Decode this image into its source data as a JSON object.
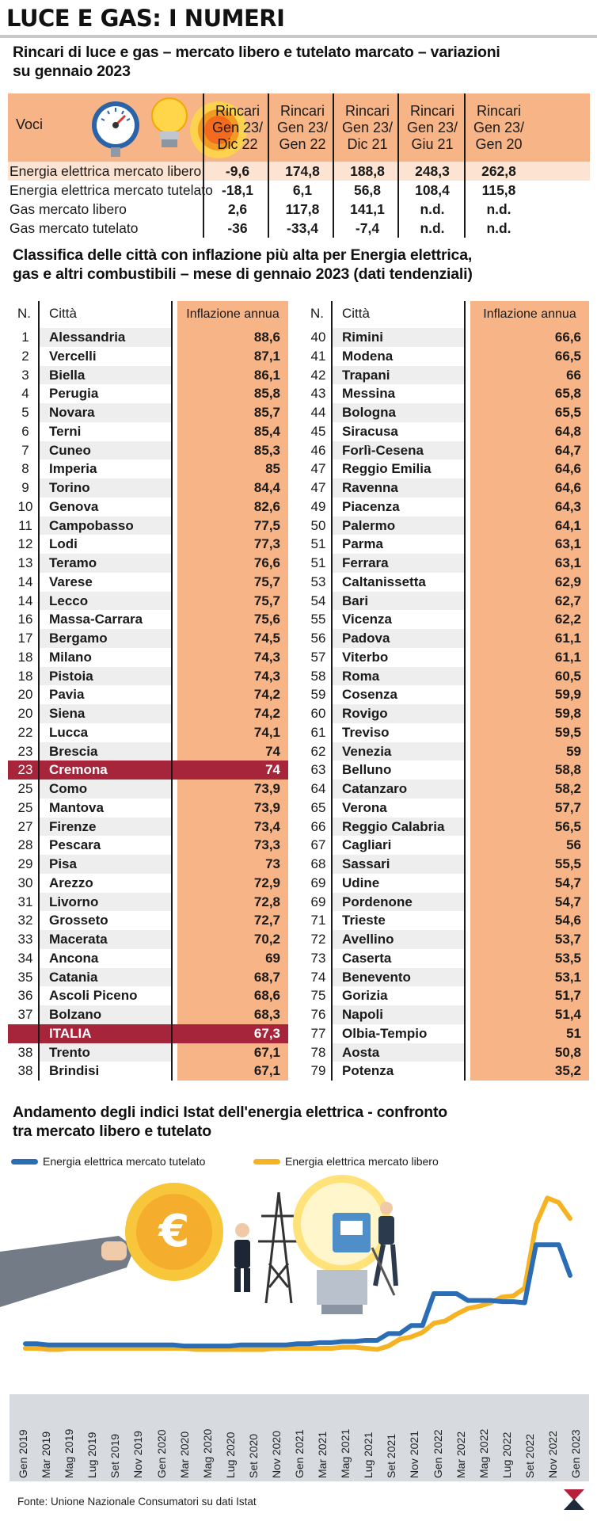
{
  "masthead": "LUCE E GAS: I NUMERI",
  "section1": {
    "title_line1": "Rincari di luce e gas – mercato libero e tutelato marcato – variazioni",
    "title_line2": "su gennaio 2023",
    "voci": "Voci",
    "columns": [
      {
        "l1": "Rincari",
        "l2": "Gen 23/",
        "l3": "Dic 22"
      },
      {
        "l1": "Rincari",
        "l2": "Gen 23/",
        "l3": "Gen 22"
      },
      {
        "l1": "Rincari",
        "l2": "Gen 23/",
        "l3": "Dic 21"
      },
      {
        "l1": "Rincari",
        "l2": "Gen 23/",
        "l3": "Giu 21"
      },
      {
        "l1": "Rincari",
        "l2": "Gen 23/",
        "l3": "Gen 20"
      }
    ],
    "rows": [
      {
        "label": "Energia elettrica mercato libero",
        "values": [
          "-9,6",
          "174,8",
          "188,8",
          "248,3",
          "262,8"
        ]
      },
      {
        "label": "Energia elettrica mercato tutelato",
        "values": [
          "-18,1",
          "6,1",
          "56,8",
          "108,4",
          "115,8"
        ]
      },
      {
        "label": "Gas mercato libero",
        "values": [
          "2,6",
          "117,8",
          "141,1",
          "n.d.",
          "n.d."
        ]
      },
      {
        "label": "Gas mercato tutelato",
        "values": [
          "-36",
          "-33,4",
          "-7,4",
          "n.d.",
          "n.d."
        ]
      }
    ]
  },
  "section2": {
    "title_line1": "Classifica delle città con inflazione più alta per Energia elettrica,",
    "title_line2": "gas e altri combustibili – mese di gennaio 2023 (dati tendenziali)",
    "head_n": "N.",
    "head_city": "Città",
    "head_infl": "Inflazione annua",
    "left": [
      [
        "1",
        "Alessandria",
        "88,6"
      ],
      [
        "2",
        "Vercelli",
        "87,1"
      ],
      [
        "3",
        "Biella",
        "86,1"
      ],
      [
        "4",
        "Perugia",
        "85,8"
      ],
      [
        "5",
        "Novara",
        "85,7"
      ],
      [
        "6",
        "Terni",
        "85,4"
      ],
      [
        "7",
        "Cuneo",
        "85,3"
      ],
      [
        "8",
        "Imperia",
        "85"
      ],
      [
        "9",
        "Torino",
        "84,4"
      ],
      [
        "10",
        "Genova",
        "82,6"
      ],
      [
        "11",
        "Campobasso",
        "77,5"
      ],
      [
        "12",
        "Lodi",
        "77,3"
      ],
      [
        "13",
        "Teramo",
        "76,6"
      ],
      [
        "14",
        "Varese",
        "75,7"
      ],
      [
        "14",
        "Lecco",
        "75,7"
      ],
      [
        "16",
        "Massa-Carrara",
        "75,6"
      ],
      [
        "17",
        "Bergamo",
        "74,5"
      ],
      [
        "18",
        "Milano",
        "74,3"
      ],
      [
        "18",
        "Pistoia",
        "74,3"
      ],
      [
        "20",
        "Pavia",
        "74,2"
      ],
      [
        "20",
        "Siena",
        "74,2"
      ],
      [
        "22",
        "Lucca",
        "74,1"
      ],
      [
        "23",
        "Brescia",
        "74"
      ],
      [
        "23",
        "Cremona",
        "74"
      ],
      [
        "25",
        "Como",
        "73,9"
      ],
      [
        "25",
        "Mantova",
        "73,9"
      ],
      [
        "27",
        "Firenze",
        "73,4"
      ],
      [
        "28",
        "Pescara",
        "73,3"
      ],
      [
        "29",
        "Pisa",
        "73"
      ],
      [
        "30",
        "Arezzo",
        "72,9"
      ],
      [
        "31",
        "Livorno",
        "72,8"
      ],
      [
        "32",
        "Grosseto",
        "72,7"
      ],
      [
        "33",
        "Macerata",
        "70,2"
      ],
      [
        "34",
        "Ancona",
        "69"
      ],
      [
        "35",
        "Catania",
        "68,7"
      ],
      [
        "36",
        "Ascoli Piceno",
        "68,6"
      ],
      [
        "37",
        "Bolzano",
        "68,3"
      ],
      [
        "",
        "ITALIA",
        "67,3"
      ],
      [
        "38",
        "Trento",
        "67,1"
      ],
      [
        "38",
        "Brindisi",
        "67,1"
      ]
    ],
    "right": [
      [
        "40",
        "Rimini",
        "66,6"
      ],
      [
        "41",
        "Modena",
        "66,5"
      ],
      [
        "42",
        "Trapani",
        "66"
      ],
      [
        "43",
        "Messina",
        "65,8"
      ],
      [
        "44",
        "Bologna",
        "65,5"
      ],
      [
        "45",
        "Siracusa",
        "64,8"
      ],
      [
        "46",
        "Forlì-Cesena",
        "64,7"
      ],
      [
        "47",
        "Reggio Emilia",
        "64,6"
      ],
      [
        "47",
        "Ravenna",
        "64,6"
      ],
      [
        "49",
        "Piacenza",
        "64,3"
      ],
      [
        "50",
        "Palermo",
        "64,1"
      ],
      [
        "51",
        "Parma",
        "63,1"
      ],
      [
        "51",
        "Ferrara",
        "63,1"
      ],
      [
        "53",
        "Caltanissetta",
        "62,9"
      ],
      [
        "54",
        "Bari",
        "62,7"
      ],
      [
        "55",
        "Vicenza",
        "62,2"
      ],
      [
        "56",
        "Padova",
        "61,1"
      ],
      [
        "57",
        "Viterbo",
        "61,1"
      ],
      [
        "58",
        "Roma",
        "60,5"
      ],
      [
        "59",
        "Cosenza",
        "59,9"
      ],
      [
        "60",
        "Rovigo",
        "59,8"
      ],
      [
        "61",
        "Treviso",
        "59,5"
      ],
      [
        "62",
        "Venezia",
        "59"
      ],
      [
        "63",
        "Belluno",
        "58,8"
      ],
      [
        "64",
        "Catanzaro",
        "58,2"
      ],
      [
        "65",
        "Verona",
        "57,7"
      ],
      [
        "66",
        "Reggio Calabria",
        "56,5"
      ],
      [
        "67",
        "Cagliari",
        "56"
      ],
      [
        "68",
        "Sassari",
        "55,5"
      ],
      [
        "69",
        "Udine",
        "54,7"
      ],
      [
        "69",
        "Pordenone",
        "54,7"
      ],
      [
        "71",
        "Trieste",
        "54,6"
      ],
      [
        "72",
        "Avellino",
        "53,7"
      ],
      [
        "73",
        "Caserta",
        "53,5"
      ],
      [
        "74",
        "Benevento",
        "53,1"
      ],
      [
        "75",
        "Gorizia",
        "51,7"
      ],
      [
        "76",
        "Napoli",
        "51,4"
      ],
      [
        "77",
        "Olbia-Tempio",
        "51"
      ],
      [
        "78",
        "Aosta",
        "50,8"
      ],
      [
        "79",
        "Potenza",
        "35,2"
      ]
    ],
    "highlight_left": [
      23,
      37
    ]
  },
  "section3": {
    "title_line1": "Andamento degli indici Istat dell'energia elettrica  - confronto",
    "title_line2": "tra mercato libero e tutelato"
  },
  "chart_data": {
    "type": "line",
    "x": [
      "Gen 2019",
      "Feb 2019",
      "Mar 2019",
      "Apr 2019",
      "Mag 2019",
      "Giu 2019",
      "Lug 2019",
      "Ago 2019",
      "Set 2019",
      "Ott 2019",
      "Nov 2019",
      "Dic 2019",
      "Gen 2020",
      "Feb 2020",
      "Mar 2020",
      "Apr 2020",
      "Mag 2020",
      "Giu 2020",
      "Lug 2020",
      "Ago 2020",
      "Set 2020",
      "Ott 2020",
      "Nov 2020",
      "Dic 2020",
      "Gen 2021",
      "Feb 2021",
      "Mar 2021",
      "Apr 2021",
      "Mag 2021",
      "Giu 2021",
      "Lug 2021",
      "Ago 2021",
      "Set 2021",
      "Ott 2021",
      "Nov 2021",
      "Dic 2021",
      "Gen 2022",
      "Feb 2022",
      "Mar 2022",
      "Apr 2022",
      "Mag 2022",
      "Giu 2022",
      "Lug 2022",
      "Ago 2022",
      "Set 2022",
      "Ott 2022",
      "Nov 2022",
      "Dic 2022",
      "Gen 2023"
    ],
    "tick_labels": [
      "Gen 2019",
      "Mar 2019",
      "Mag 2019",
      "Lug 2019",
      "Set 2019",
      "Nov 2019",
      "Gen 2020",
      "Mar 2020",
      "Mag 2020",
      "Lug 2020",
      "Set 2020",
      "Nov 2020",
      "Gen 2021",
      "Mar 2021",
      "Mag 2021",
      "Lug 2021",
      "Set 2021",
      "Nov 2021",
      "Gen 2022",
      "Mar 2022",
      "Mag 2022",
      "Lug 2022",
      "Set 2022",
      "Nov 2022",
      "Gen 2023"
    ],
    "series": [
      {
        "name": "Energia elettrica mercato tutelato",
        "color": "#2a6db5",
        "values": [
          100,
          100,
          99,
          99,
          99,
          99,
          99,
          99,
          99,
          99,
          99,
          99,
          99,
          99,
          98,
          98,
          98,
          98,
          98,
          99,
          99,
          99,
          99,
          99,
          100,
          100,
          101,
          101,
          102,
          102,
          103,
          103,
          109,
          109,
          116,
          116,
          144,
          144,
          144,
          138,
          138,
          138,
          137,
          137,
          136,
          187,
          187,
          187,
          160
        ]
      },
      {
        "name": "Energia elettrica mercato libero",
        "color": "#f5b324",
        "values": [
          96,
          96,
          95,
          95,
          96,
          96,
          96,
          96,
          96,
          96,
          96,
          96,
          96,
          96,
          96,
          95,
          95,
          95,
          95,
          95,
          95,
          95,
          96,
          96,
          96,
          96,
          96,
          96,
          97,
          97,
          96,
          95,
          98,
          104,
          106,
          110,
          118,
          120,
          126,
          131,
          133,
          136,
          141,
          142,
          149,
          205,
          228,
          224,
          210
        ]
      }
    ],
    "ylim": [
      80,
      240
    ],
    "legend_position": "top-left",
    "grid": false
  },
  "source": "Fonte: Unione Nazionale Consumatori su dati Istat"
}
